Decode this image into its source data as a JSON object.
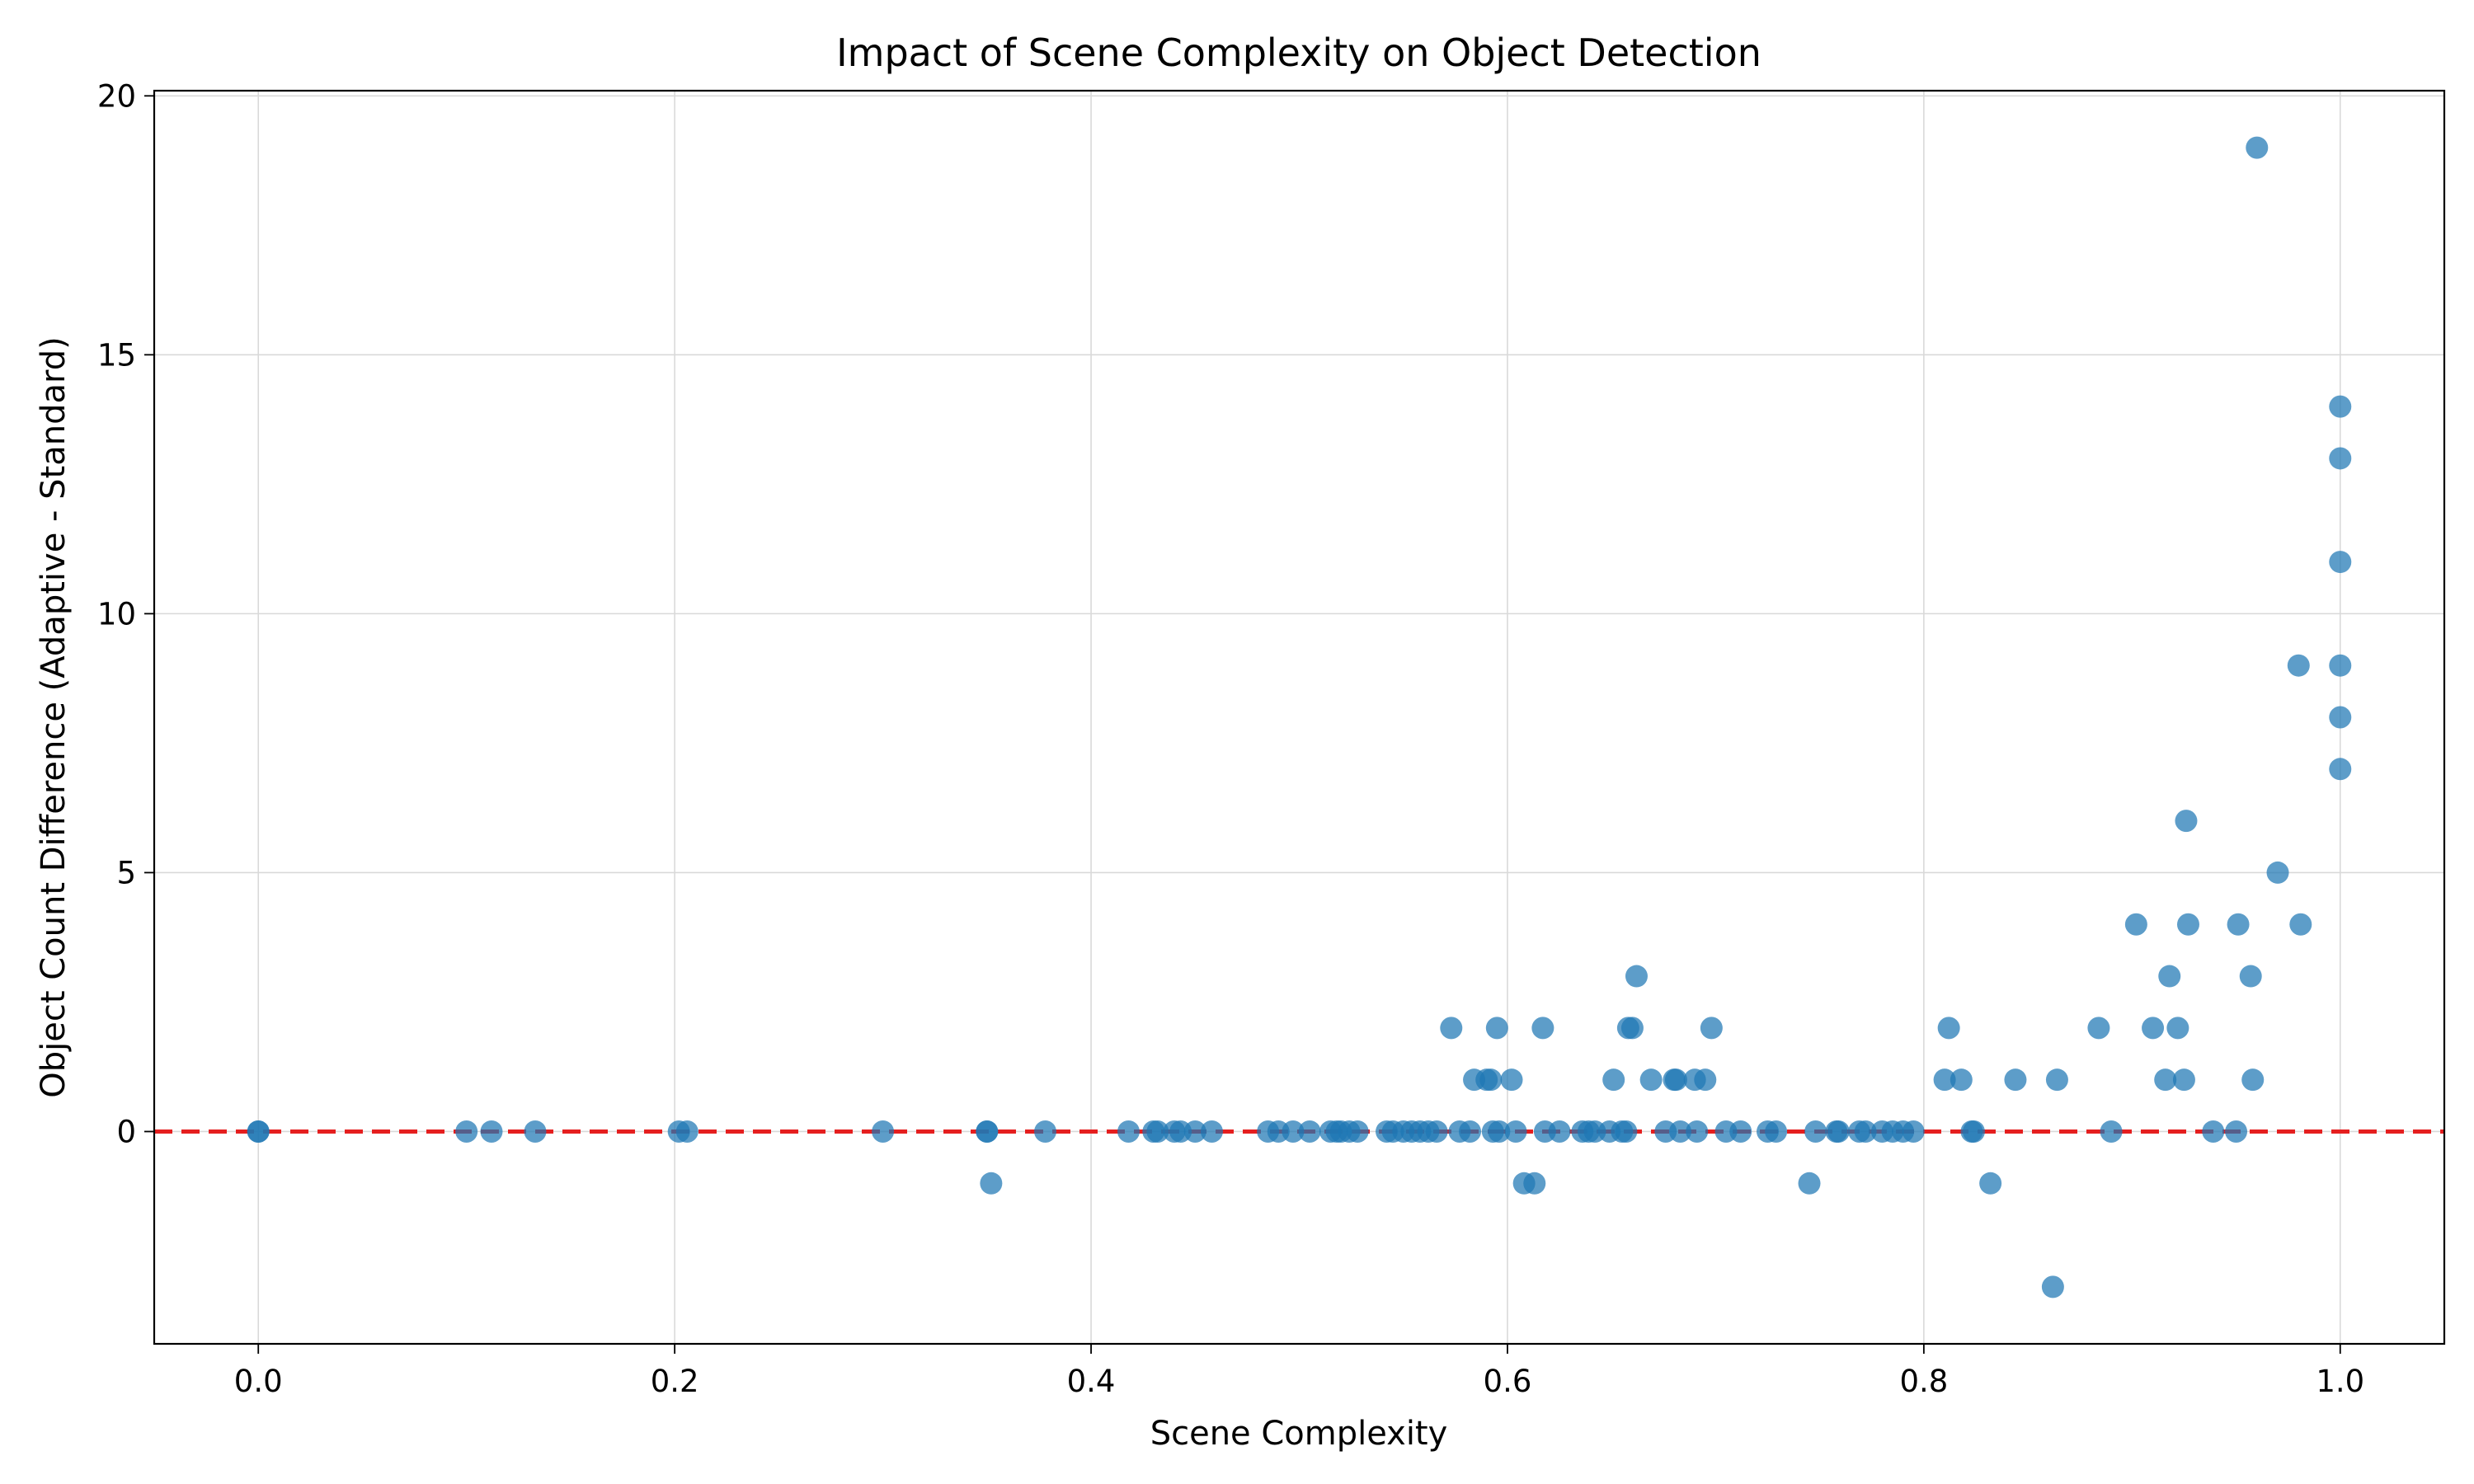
{
  "chart_data": {
    "type": "scatter",
    "title": "Impact of Scene Complexity on Object Detection",
    "xlabel": "Scene Complexity",
    "ylabel": "Object Count Difference (Adaptive - Standard)",
    "xlim": [
      -0.05,
      1.05
    ],
    "ylim": [
      -4.1,
      20.1
    ],
    "xticks": [
      0.0,
      0.2,
      0.4,
      0.6,
      0.8,
      1.0
    ],
    "xtick_labels": [
      "0.0",
      "0.2",
      "0.4",
      "0.6",
      "0.8",
      "1.0"
    ],
    "yticks": [
      0,
      5,
      10,
      15,
      20
    ],
    "ytick_labels": [
      "0",
      "5",
      "10",
      "15",
      "20"
    ],
    "grid": true,
    "reference_line": {
      "y": 0,
      "color": "#e51f1f",
      "style": "dashed"
    },
    "marker_color": "#1f77b4",
    "series": [
      {
        "points": [
          [
            0.0,
            0
          ],
          [
            0.0,
            0
          ],
          [
            0.1,
            0
          ],
          [
            0.112,
            0
          ],
          [
            0.133,
            0
          ],
          [
            0.202,
            0
          ],
          [
            0.206,
            0
          ],
          [
            0.3,
            0
          ],
          [
            0.35,
            0
          ],
          [
            0.35,
            0
          ],
          [
            0.352,
            -1
          ],
          [
            0.378,
            0
          ],
          [
            0.418,
            0
          ],
          [
            0.43,
            0
          ],
          [
            0.432,
            0
          ],
          [
            0.44,
            0
          ],
          [
            0.443,
            0
          ],
          [
            0.45,
            0
          ],
          [
            0.458,
            0
          ],
          [
            0.485,
            0
          ],
          [
            0.49,
            0
          ],
          [
            0.497,
            0
          ],
          [
            0.505,
            0
          ],
          [
            0.515,
            0
          ],
          [
            0.518,
            0
          ],
          [
            0.52,
            0
          ],
          [
            0.524,
            0
          ],
          [
            0.528,
            0
          ],
          [
            0.542,
            0
          ],
          [
            0.545,
            0
          ],
          [
            0.55,
            0
          ],
          [
            0.554,
            0
          ],
          [
            0.558,
            0
          ],
          [
            0.562,
            0
          ],
          [
            0.566,
            0
          ],
          [
            0.573,
            2
          ],
          [
            0.577,
            0
          ],
          [
            0.582,
            0
          ],
          [
            0.584,
            1
          ],
          [
            0.59,
            1
          ],
          [
            0.592,
            1
          ],
          [
            0.593,
            0
          ],
          [
            0.595,
            2
          ],
          [
            0.596,
            0
          ],
          [
            0.602,
            1
          ],
          [
            0.604,
            0
          ],
          [
            0.608,
            -1
          ],
          [
            0.613,
            -1
          ],
          [
            0.617,
            2
          ],
          [
            0.618,
            0
          ],
          [
            0.625,
            0
          ],
          [
            0.636,
            0
          ],
          [
            0.639,
            0
          ],
          [
            0.642,
            0
          ],
          [
            0.649,
            0
          ],
          [
            0.651,
            1
          ],
          [
            0.655,
            0
          ],
          [
            0.657,
            0
          ],
          [
            0.658,
            2
          ],
          [
            0.66,
            2
          ],
          [
            0.662,
            3
          ],
          [
            0.669,
            1
          ],
          [
            0.676,
            0
          ],
          [
            0.68,
            1
          ],
          [
            0.681,
            1
          ],
          [
            0.683,
            0
          ],
          [
            0.69,
            1
          ],
          [
            0.691,
            0
          ],
          [
            0.695,
            1
          ],
          [
            0.698,
            2
          ],
          [
            0.705,
            0
          ],
          [
            0.712,
            0
          ],
          [
            0.725,
            0
          ],
          [
            0.729,
            0
          ],
          [
            0.745,
            -1
          ],
          [
            0.748,
            0
          ],
          [
            0.758,
            0
          ],
          [
            0.759,
            0
          ],
          [
            0.769,
            0
          ],
          [
            0.772,
            0
          ],
          [
            0.78,
            0
          ],
          [
            0.785,
            0
          ],
          [
            0.79,
            0
          ],
          [
            0.795,
            0
          ],
          [
            0.81,
            1
          ],
          [
            0.812,
            2
          ],
          [
            0.818,
            1
          ],
          [
            0.823,
            0
          ],
          [
            0.824,
            0
          ],
          [
            0.832,
            -1
          ],
          [
            0.844,
            1
          ],
          [
            0.862,
            -3
          ],
          [
            0.864,
            1
          ],
          [
            0.884,
            2
          ],
          [
            0.89,
            0
          ],
          [
            0.902,
            4
          ],
          [
            0.91,
            2
          ],
          [
            0.916,
            1
          ],
          [
            0.918,
            3
          ],
          [
            0.922,
            2
          ],
          [
            0.925,
            1
          ],
          [
            0.926,
            6
          ],
          [
            0.927,
            4
          ],
          [
            0.939,
            0
          ],
          [
            0.95,
            0
          ],
          [
            0.951,
            4
          ],
          [
            0.957,
            3
          ],
          [
            0.958,
            1
          ],
          [
            0.96,
            19
          ],
          [
            0.97,
            5
          ],
          [
            0.98,
            9
          ],
          [
            0.981,
            4
          ],
          [
            1.0,
            14
          ],
          [
            1.0,
            13
          ],
          [
            1.0,
            11
          ],
          [
            1.0,
            9
          ],
          [
            1.0,
            8
          ],
          [
            1.0,
            7
          ]
        ]
      }
    ]
  }
}
